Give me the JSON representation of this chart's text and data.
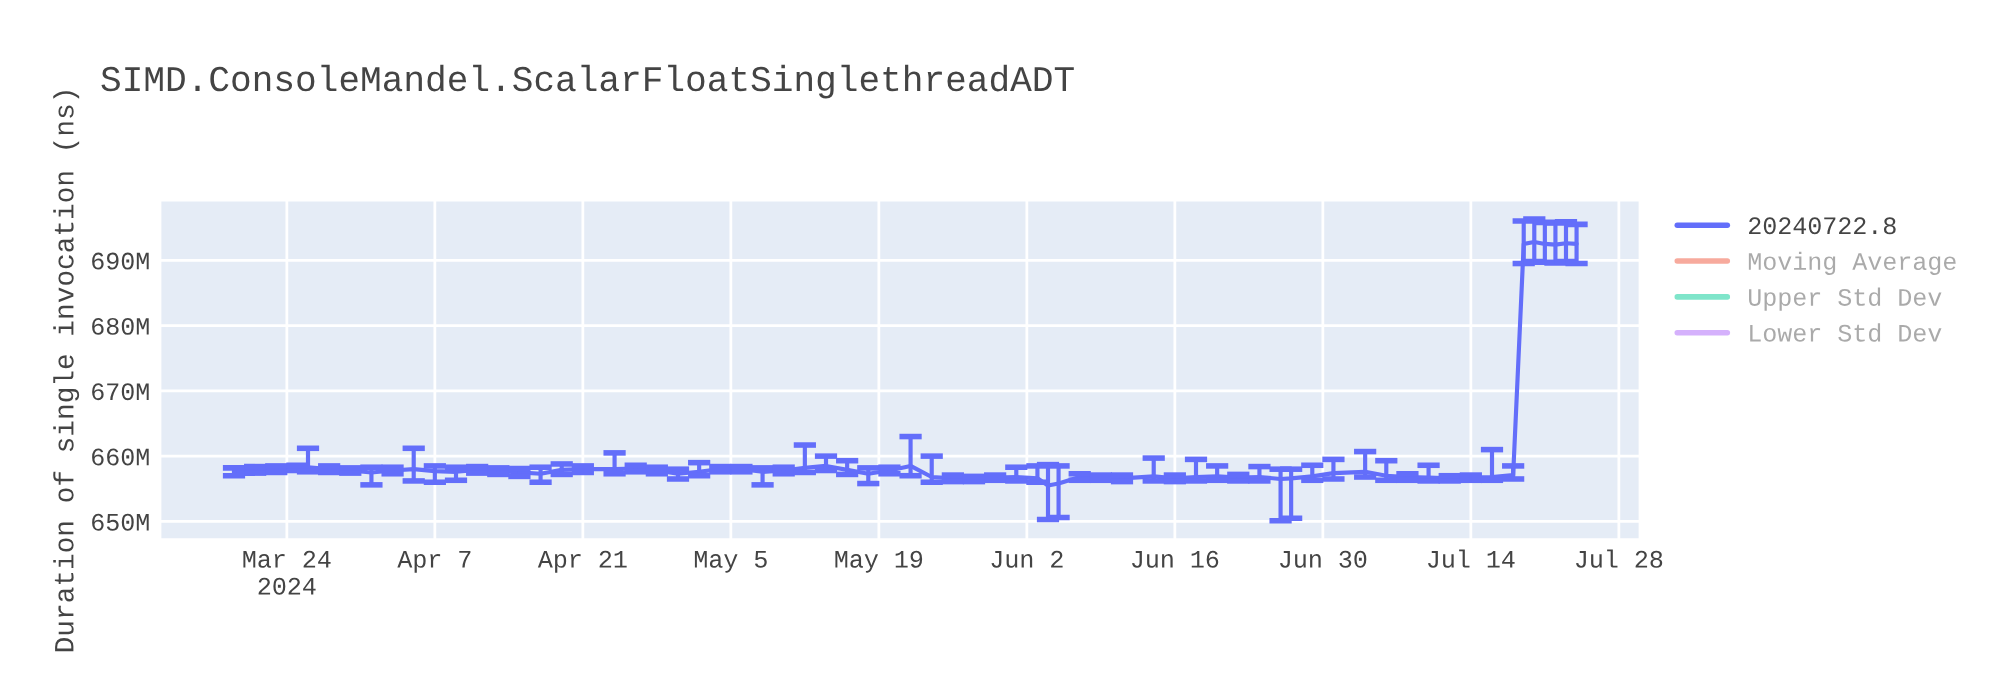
{
  "chart_data": {
    "type": "line",
    "title": "SIMD.ConsoleMandel.ScalarFloatSinglethreadADT",
    "ylabel": "Duration of single invocation (ns)",
    "x": [
      "2024-03-19",
      "2024-03-21",
      "2024-03-23",
      "2024-03-25",
      "2024-03-26",
      "2024-03-28",
      "2024-03-30",
      "2024-04-01",
      "2024-04-03",
      "2024-04-05",
      "2024-04-07",
      "2024-04-09",
      "2024-04-11",
      "2024-04-13",
      "2024-04-15",
      "2024-04-17",
      "2024-04-19",
      "2024-04-21",
      "2024-04-24",
      "2024-04-26",
      "2024-04-28",
      "2024-04-30",
      "2024-05-02",
      "2024-05-04",
      "2024-05-06",
      "2024-05-08",
      "2024-05-10",
      "2024-05-12",
      "2024-05-14",
      "2024-05-16",
      "2024-05-18",
      "2024-05-20",
      "2024-05-22",
      "2024-05-24",
      "2024-05-26",
      "2024-05-28",
      "2024-05-30",
      "2024-06-01",
      "2024-06-03",
      "2024-06-04",
      "2024-06-05",
      "2024-06-07",
      "2024-06-09",
      "2024-06-11",
      "2024-06-14",
      "2024-06-16",
      "2024-06-18",
      "2024-06-20",
      "2024-06-22",
      "2024-06-24",
      "2024-06-26",
      "2024-06-27",
      "2024-06-29",
      "2024-07-01",
      "2024-07-04",
      "2024-07-06",
      "2024-07-08",
      "2024-07-10",
      "2024-07-12",
      "2024-07-14",
      "2024-07-16",
      "2024-07-18",
      "2024-07-19",
      "2024-07-20",
      "2024-07-21",
      "2024-07-22",
      "2024-07-23",
      "2024-07-24"
    ],
    "series": [
      {
        "name": "20240722.8",
        "color": "#636efa",
        "values": [
          657600000,
          657900000,
          658000000,
          658200000,
          658300000,
          658000000,
          657800000,
          657500000,
          657800000,
          658000000,
          657700000,
          657600000,
          657900000,
          657700000,
          657500000,
          657300000,
          657900000,
          658000000,
          658000000,
          658100000,
          657800000,
          657300000,
          657600000,
          658000000,
          658000000,
          657600000,
          657800000,
          658200000,
          658500000,
          657900000,
          657300000,
          657800000,
          658500000,
          656800000,
          656600000,
          656500000,
          656700000,
          656800000,
          656600000,
          655500000,
          655800000,
          656800000,
          656700000,
          656600000,
          656900000,
          656600000,
          656800000,
          656900000,
          656700000,
          656800000,
          656500000,
          656600000,
          656900000,
          657400000,
          657600000,
          657000000,
          656800000,
          656700000,
          656600000,
          656700000,
          656800000,
          657100000,
          692500000,
          692800000,
          692500000,
          692400000,
          692600000,
          692500000
        ],
        "errors": [
          600000,
          500000,
          500000,
          400000,
          [
            657600000,
            661200000
          ],
          500000,
          400000,
          [
            655600000,
            658300000
          ],
          500000,
          [
            656200000,
            661200000
          ],
          [
            656000000,
            658500000
          ],
          [
            656300000,
            658300000
          ],
          500000,
          500000,
          600000,
          [
            656000000,
            658300000
          ],
          [
            657200000,
            658800000
          ],
          500000,
          [
            657300000,
            660500000
          ],
          500000,
          500000,
          [
            656500000,
            658000000
          ],
          [
            657000000,
            659000000
          ],
          400000,
          400000,
          [
            655600000,
            658200000
          ],
          500000,
          [
            657500000,
            661700000
          ],
          [
            657800000,
            660000000
          ],
          [
            657200000,
            659300000
          ],
          [
            655800000,
            658200000
          ],
          500000,
          [
            657000000,
            663000000
          ],
          [
            656000000,
            660000000
          ],
          500000,
          400000,
          400000,
          [
            656200000,
            658300000
          ],
          [
            656000000,
            658500000
          ],
          [
            650300000,
            658700000
          ],
          [
            650600000,
            658500000
          ],
          500000,
          400000,
          500000,
          [
            656200000,
            659700000
          ],
          500000,
          [
            656200000,
            659500000
          ],
          [
            656300000,
            658500000
          ],
          500000,
          [
            656200000,
            658400000
          ],
          [
            650100000,
            658000000
          ],
          [
            650500000,
            658000000
          ],
          [
            656300000,
            658600000
          ],
          [
            656500000,
            659500000
          ],
          [
            656800000,
            660700000
          ],
          [
            656300000,
            659300000
          ],
          500000,
          [
            656200000,
            658600000
          ],
          400000,
          400000,
          [
            656300000,
            661000000
          ],
          [
            656500000,
            658500000
          ],
          [
            689500000,
            696000000
          ],
          [
            689800000,
            696300000
          ],
          [
            689700000,
            695800000
          ],
          [
            689600000,
            695700000
          ],
          [
            689800000,
            695900000
          ],
          [
            689500000,
            695500000
          ]
        ]
      },
      {
        "name": "Moving Average",
        "color": "#ef553b",
        "values": [
          null,
          null,
          null,
          null,
          null,
          null,
          null,
          null,
          null,
          null,
          null,
          null,
          null,
          null,
          null,
          null,
          null,
          null,
          null,
          null,
          null,
          null,
          null,
          null,
          null,
          null,
          null,
          null,
          null,
          null,
          null,
          null,
          null,
          null,
          null,
          null,
          null,
          null,
          null,
          null,
          null,
          null,
          null,
          null,
          null,
          null,
          null,
          null,
          null,
          null,
          null,
          null,
          null,
          null,
          null,
          null,
          null,
          null,
          null,
          null,
          null,
          null,
          null,
          null,
          null,
          null,
          null,
          null
        ]
      },
      {
        "name": "Upper Std Dev",
        "color": "#00cc96",
        "values": [
          null,
          null,
          null,
          null,
          null,
          null,
          null,
          null,
          null,
          null,
          null,
          null,
          null,
          null,
          null,
          null,
          null,
          null,
          null,
          null,
          null,
          null,
          null,
          null,
          null,
          null,
          null,
          null,
          null,
          null,
          null,
          null,
          null,
          null,
          null,
          null,
          null,
          null,
          null,
          null,
          null,
          null,
          null,
          null,
          null,
          null,
          null,
          null,
          null,
          null,
          null,
          null,
          null,
          null,
          null,
          null,
          null,
          null,
          null,
          null,
          null,
          null,
          null,
          null,
          null,
          null,
          null,
          null
        ]
      },
      {
        "name": "Lower Std Dev",
        "color": "#ab63fa",
        "values": [
          null,
          null,
          null,
          null,
          null,
          null,
          null,
          null,
          null,
          null,
          null,
          null,
          null,
          null,
          null,
          null,
          null,
          null,
          null,
          null,
          null,
          null,
          null,
          null,
          null,
          null,
          null,
          null,
          null,
          null,
          null,
          null,
          null,
          null,
          null,
          null,
          null,
          null,
          null,
          null,
          null,
          null,
          null,
          null,
          null,
          null,
          null,
          null,
          null,
          null,
          null,
          null,
          null,
          null,
          null,
          null,
          null,
          null,
          null,
          null,
          null,
          null,
          null,
          null,
          null,
          null,
          null,
          null
        ]
      }
    ],
    "xlim": [
      "2024-03-12",
      "2024-07-30"
    ],
    "xticks": [
      {
        "value": "2024-03-24",
        "label": "Mar 24\n2024"
      },
      {
        "value": "2024-04-07",
        "label": "Apr 7"
      },
      {
        "value": "2024-04-21",
        "label": "Apr 21"
      },
      {
        "value": "2024-05-05",
        "label": "May 5"
      },
      {
        "value": "2024-05-19",
        "label": "May 19"
      },
      {
        "value": "2024-06-02",
        "label": "Jun 2"
      },
      {
        "value": "2024-06-16",
        "label": "Jun 16"
      },
      {
        "value": "2024-06-30",
        "label": "Jun 30"
      },
      {
        "value": "2024-07-14",
        "label": "Jul 14"
      },
      {
        "value": "2024-07-28",
        "label": "Jul 28"
      }
    ],
    "ylim": [
      647200000,
      699200000
    ],
    "yticks": [
      {
        "value": 650000000,
        "label": "650M"
      },
      {
        "value": 660000000,
        "label": "660M"
      },
      {
        "value": 670000000,
        "label": "670M"
      },
      {
        "value": 680000000,
        "label": "680M"
      },
      {
        "value": 690000000,
        "label": "690M"
      }
    ],
    "grid": true,
    "legend": "right"
  }
}
